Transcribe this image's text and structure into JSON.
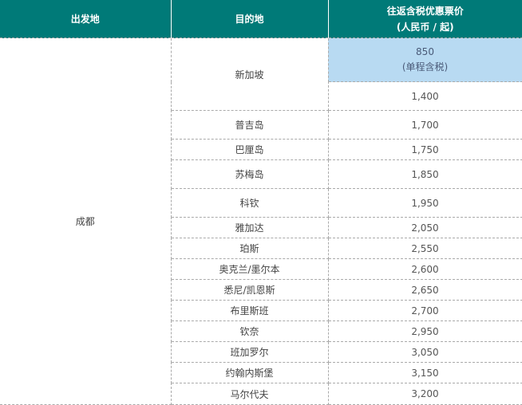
{
  "header": {
    "origin": "出发地",
    "destination": "目的地",
    "price_line1": "往返含税优惠票价",
    "price_line2": "(人民币 / 起)"
  },
  "origin": "成都",
  "highlight_color": "#b8daf2",
  "header_color": "#007a78",
  "singapore": {
    "destination": "新加坡",
    "promo_price": "850",
    "promo_note": "(单程含税)",
    "price": "1,400"
  },
  "rows": [
    {
      "destination": "普吉岛",
      "price": "1,700"
    },
    {
      "destination": "巴厘岛",
      "price": "1,750"
    },
    {
      "destination": "苏梅岛",
      "price": "1,850"
    },
    {
      "destination": "科钦",
      "price": "1,950"
    },
    {
      "destination": "雅加达",
      "price": "2,050"
    },
    {
      "destination": "珀斯",
      "price": "2,550"
    },
    {
      "destination": "奥克兰/墨尔本",
      "price": "2,600"
    },
    {
      "destination": "悉尼/凯恩斯",
      "price": "2,650"
    },
    {
      "destination": "布里斯班",
      "price": "2,700"
    },
    {
      "destination": "钦奈",
      "price": "2,950"
    },
    {
      "destination": "班加罗尔",
      "price": "3,050"
    },
    {
      "destination": "约翰内斯堡",
      "price": "3,150"
    },
    {
      "destination": "马尔代夫",
      "price": "3,200"
    }
  ]
}
